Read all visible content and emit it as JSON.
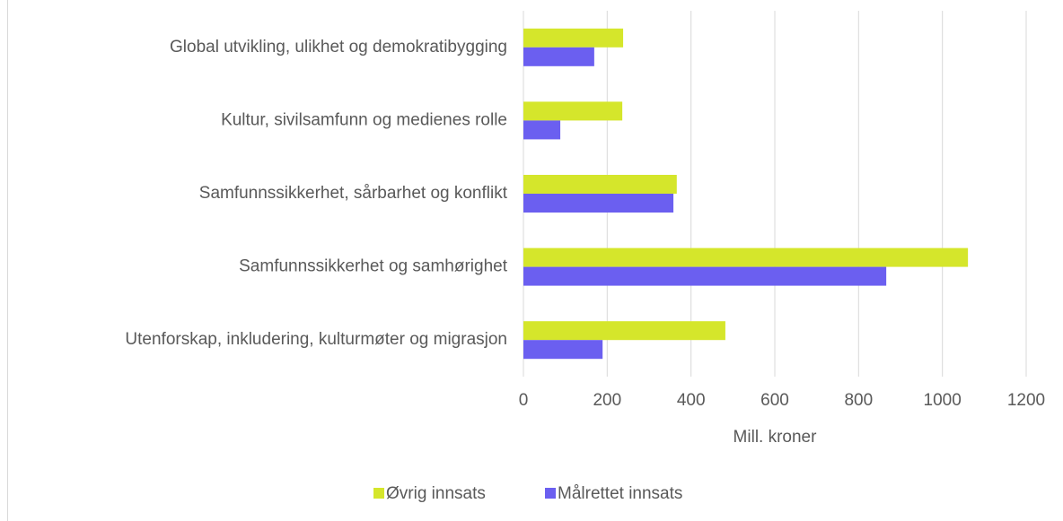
{
  "chart_data": {
    "type": "hbar",
    "categories": [
      "Global utvikling, ulikhet og demokratibygging",
      "Kultur, sivilsamfunn og medienes rolle",
      "Samfunnssikkerhet, sårbarhet og konflikt",
      "Samfunnssikkerhet og samhørighet",
      "Utenforskap, inkludering, kulturmøter og migrasjon"
    ],
    "series": [
      {
        "name": "Øvrig innsats",
        "color": "#d5e62b",
        "values": [
          238,
          236,
          366,
          1061,
          482
        ]
      },
      {
        "name": "Målrettet innsats",
        "color": "#6b5ff0",
        "values": [
          169,
          88,
          358,
          866,
          189
        ]
      }
    ],
    "xlabel": "Mill. kroner",
    "xlim": [
      0,
      1200
    ],
    "xticks": [
      0,
      200,
      400,
      600,
      800,
      1000,
      1200
    ],
    "grid": true,
    "legend": "bottom"
  }
}
